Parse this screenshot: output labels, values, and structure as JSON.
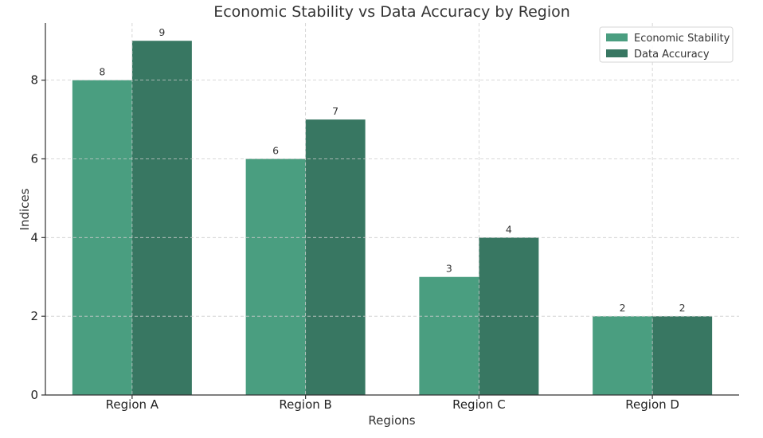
{
  "chart_data": {
    "type": "bar",
    "title": "Economic Stability vs Data Accuracy by Region",
    "xlabel": "Regions",
    "ylabel": "Indices",
    "categories": [
      "Region A",
      "Region B",
      "Region C",
      "Region D"
    ],
    "series": [
      {
        "name": "Economic Stability",
        "values": [
          8,
          6,
          3,
          2
        ],
        "color": "#4a9e80"
      },
      {
        "name": "Data Accuracy",
        "values": [
          9,
          7,
          4,
          2
        ],
        "color": "#387762"
      }
    ],
    "ylim": [
      0,
      9.45
    ],
    "yticks": [
      0,
      2,
      4,
      6,
      8
    ],
    "grid": true,
    "legend": "top-right"
  }
}
